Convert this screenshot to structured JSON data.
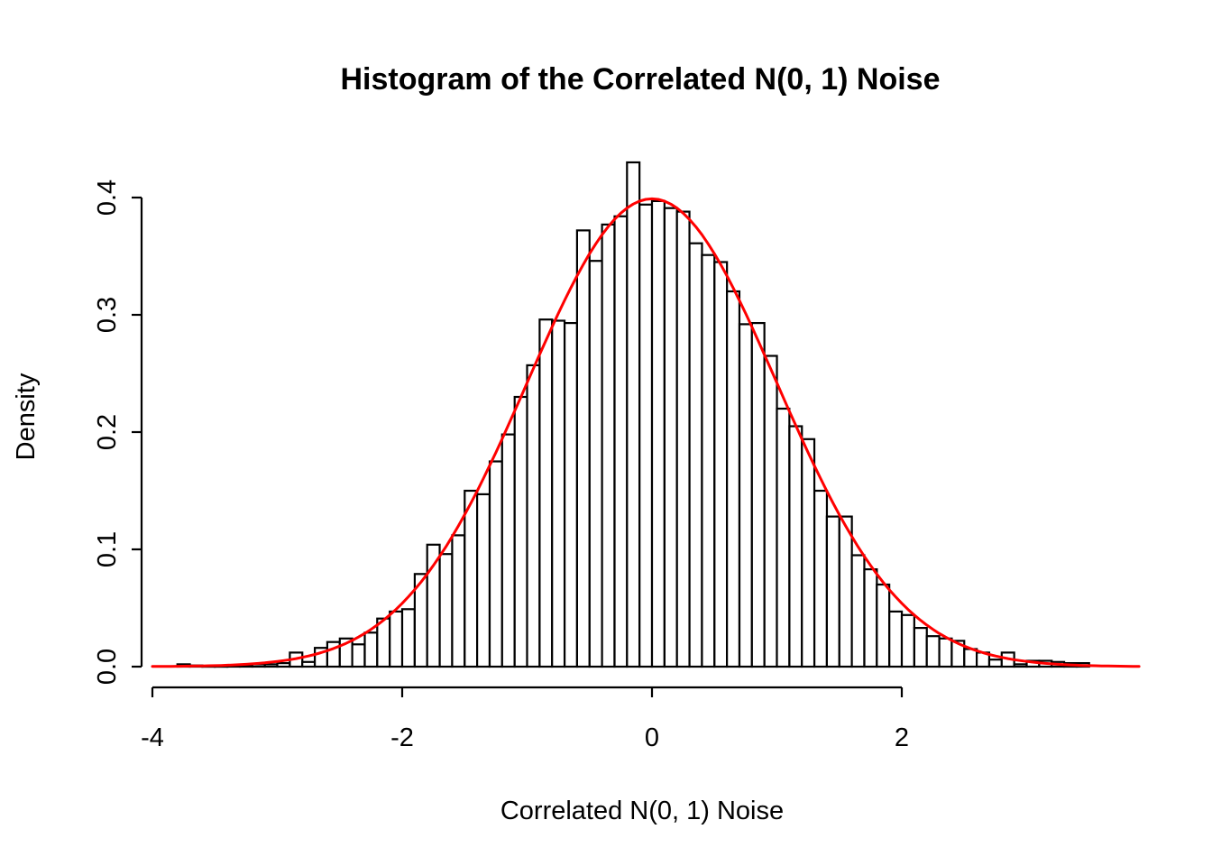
{
  "title": "Histogram of the Correlated N(0, 1) Noise",
  "x_axis": {
    "label": "Correlated N(0, 1) Noise",
    "tick_labels": [
      "-4",
      "-2",
      "0",
      "2"
    ],
    "tick_values": [
      -4,
      -2,
      0,
      2
    ],
    "range": [
      -4.05,
      3.95
    ]
  },
  "y_axis": {
    "label": "Density",
    "tick_labels": [
      "0.0",
      "0.1",
      "0.2",
      "0.3",
      "0.4"
    ],
    "tick_values": [
      0,
      0.1,
      0.2,
      0.3,
      0.4
    ],
    "range": [
      0,
      0.43
    ]
  },
  "colors": {
    "background": "#ffffff",
    "bar_fill": "#ffffff",
    "bar_border": "#000000",
    "axis": "#000000",
    "curve": "#ff0000"
  },
  "chart_data": {
    "type": "bar",
    "subtype": "histogram-with-density-curve",
    "title": "Histogram of the Correlated N(0, 1) Noise",
    "xlabel": "Correlated N(0, 1) Noise",
    "ylabel": "Density",
    "xlim": [
      -4.05,
      3.95
    ],
    "ylim": [
      0,
      0.43
    ],
    "grid": false,
    "legend": "none",
    "bin_start": -3.8,
    "bin_width": 0.1,
    "bar_border_color": "#000000",
    "bar_fill_color": "#ffffff",
    "densities": [
      0.002,
      0.001,
      0.0005,
      0.0005,
      0.001,
      0.001,
      0.002,
      0.002,
      0.003,
      0.012,
      0.004,
      0.016,
      0.021,
      0.024,
      0.019,
      0.029,
      0.041,
      0.047,
      0.049,
      0.079,
      0.104,
      0.096,
      0.112,
      0.15,
      0.147,
      0.175,
      0.198,
      0.23,
      0.257,
      0.296,
      0.295,
      0.293,
      0.372,
      0.346,
      0.377,
      0.384,
      0.43,
      0.394,
      0.397,
      0.391,
      0.388,
      0.361,
      0.351,
      0.345,
      0.32,
      0.292,
      0.293,
      0.265,
      0.22,
      0.205,
      0.194,
      0.15,
      0.128,
      0.128,
      0.095,
      0.083,
      0.07,
      0.047,
      0.044,
      0.033,
      0.026,
      0.024,
      0.022,
      0.015,
      0.012,
      0.006,
      0.012,
      0.002,
      0.005,
      0.005,
      0.004,
      0.003,
      0.003
    ],
    "curve": {
      "type": "normal-density",
      "mean": 0,
      "sd": 1,
      "peak_density": 0.399,
      "color": "#ff0000",
      "x_range": [
        -4.0,
        3.9
      ]
    }
  }
}
